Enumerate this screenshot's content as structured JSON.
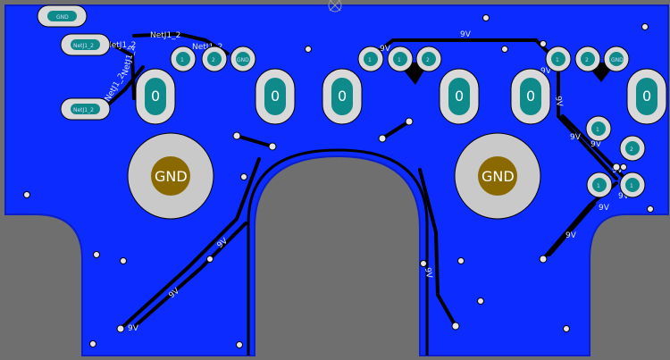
{
  "board": {
    "colors": {
      "background": "#6f6f6f",
      "copper": "#0b2bff",
      "copper_dark": "#0a1fc9",
      "trace": "#000000",
      "pad_outer": "#d9d9d9",
      "pad_inner": "#0e8a8a",
      "gnd_ring": "#c9c9c9",
      "gnd_core": "#8a6a00",
      "via": "#e6e6e6"
    },
    "net_labels": {
      "netj1_2_top": "NetJ1_2",
      "netj1_2_a": "NetJ1_2",
      "netj1_2_b": "NetJ1_2",
      "netj1_2_c": "NetJ1_2",
      "netj1_2_d": "NetJ1_2",
      "net_9v_list": [
        "9V",
        "9V",
        "9V",
        "9V",
        "9V",
        "9V",
        "9V",
        "9V",
        "9V",
        "9V",
        "9V",
        "9V",
        "9V",
        "9V"
      ]
    },
    "pads": {
      "zero_label": "0",
      "gnd_label": "GND",
      "small_labels": [
        "GND",
        "NetJ1_2",
        "NetJ1_2",
        "1",
        "2",
        "GND",
        "1",
        "1",
        "2",
        "1",
        "2",
        "GND",
        "1",
        "2",
        "1",
        "1",
        "1",
        "1"
      ]
    }
  }
}
